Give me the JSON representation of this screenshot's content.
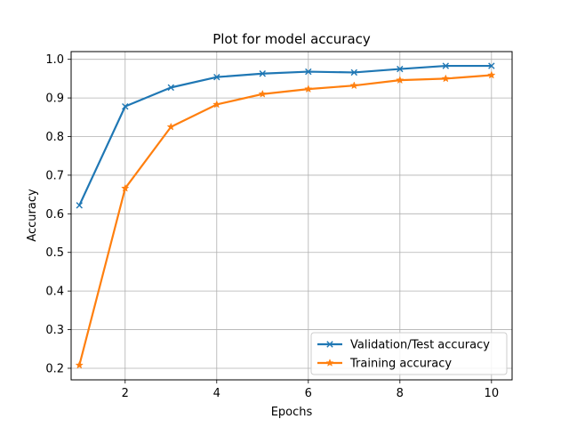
{
  "chart_data": {
    "type": "line",
    "title": "Plot for model accuracy",
    "xlabel": "Epochs",
    "ylabel": "Accuracy",
    "xlim": [
      0.82,
      10.45
    ],
    "ylim": [
      0.17,
      1.02
    ],
    "xticks": [
      2,
      4,
      6,
      8,
      10
    ],
    "yticks": [
      0.2,
      0.3,
      0.4,
      0.5,
      0.6,
      0.7,
      0.8,
      0.9,
      1.0
    ],
    "yticklabels": [
      "0.2",
      "0.3",
      "0.4",
      "0.5",
      "0.6",
      "0.7",
      "0.8",
      "0.9",
      "1.0"
    ],
    "grid": true,
    "legend_position": "lower-right",
    "x": [
      1,
      2,
      3,
      4,
      5,
      6,
      7,
      8,
      9,
      10
    ],
    "series": [
      {
        "name": "Validation/Test accuracy",
        "color": "#1f77b4",
        "marker": "x",
        "values": [
          0.622,
          0.878,
          0.927,
          0.954,
          0.963,
          0.968,
          0.966,
          0.975,
          0.983,
          0.983
        ]
      },
      {
        "name": "Training accuracy",
        "color": "#ff7f0e",
        "marker": "star",
        "values": [
          0.208,
          0.666,
          0.825,
          0.883,
          0.91,
          0.923,
          0.932,
          0.946,
          0.95,
          0.959
        ]
      }
    ]
  }
}
